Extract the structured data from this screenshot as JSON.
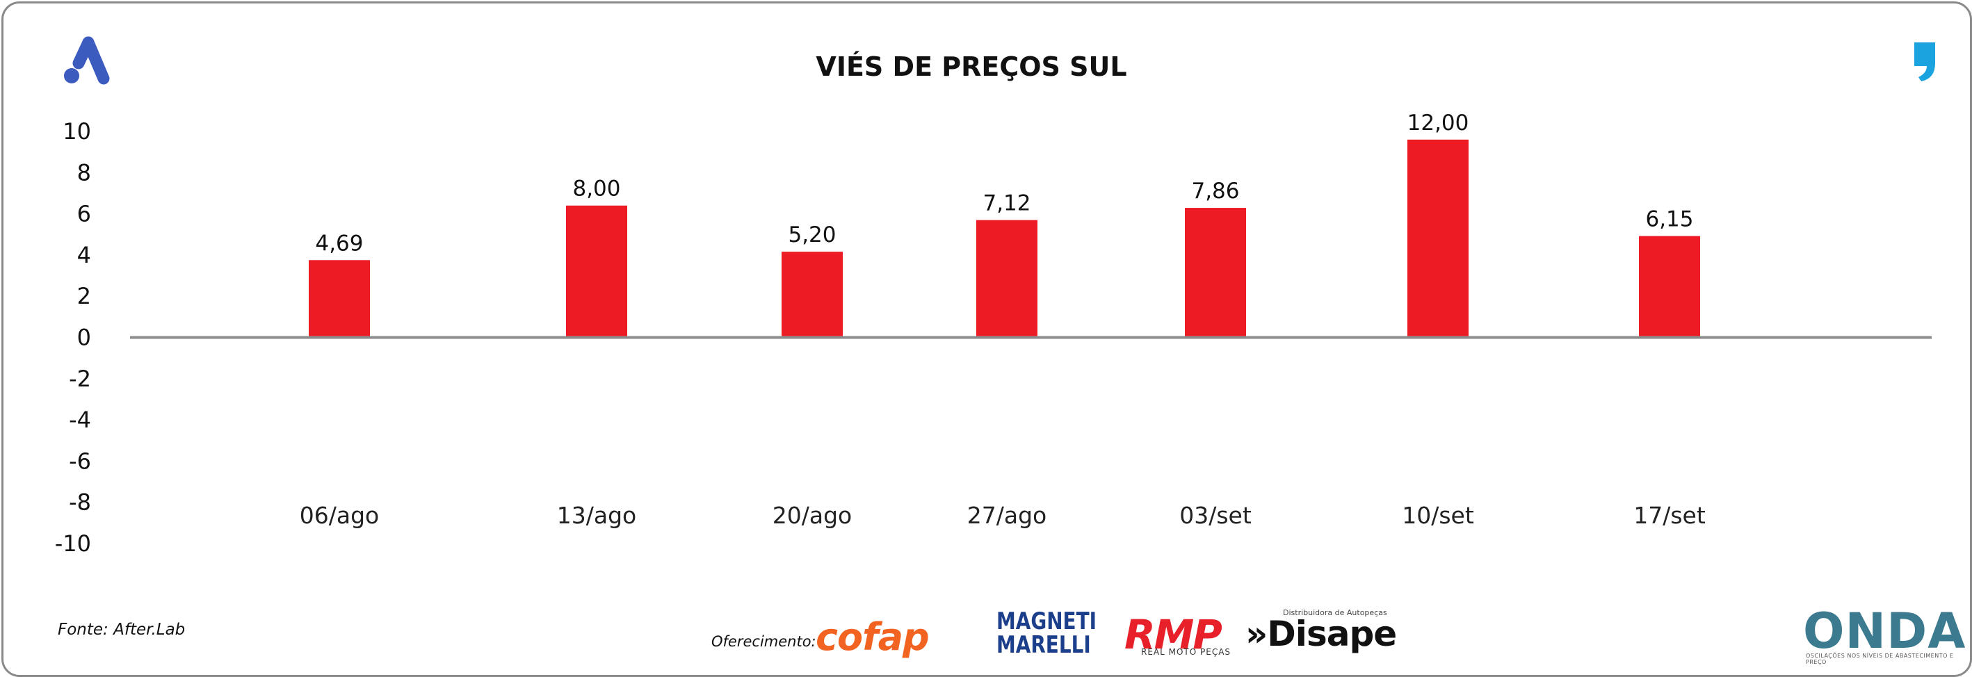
{
  "chart_data": {
    "type": "bar",
    "title": "VIÉS DE PREÇOS SUL",
    "categories": [
      "06/ago",
      "13/ago",
      "20/ago",
      "27/ago",
      "03/set",
      "10/set",
      "17/set"
    ],
    "values": [
      4.69,
      8.0,
      5.2,
      7.12,
      7.86,
      12.0,
      6.15
    ],
    "data_labels": [
      "4,69",
      "8,00",
      "5,20",
      "7,12",
      "7,86",
      "12,00",
      "6,15"
    ],
    "y_ticks": [
      "10",
      "8",
      "6",
      "4",
      "2",
      "0",
      "-2",
      "-4",
      "-6",
      "-8",
      "-10"
    ],
    "ylim": [
      -10,
      10
    ],
    "grid": false,
    "legend": "none",
    "bar_color": "#ed1c24"
  },
  "footer": {
    "source": "Fonte: After.Lab",
    "sponsor_label": "Oferecimento:",
    "logos": {
      "cofap": "cofap",
      "magneti": "MAGNETI MARELLI",
      "rmp": "RMP",
      "rmp_sub": "REAL MOTO PEÇAS",
      "disape": "»Disape",
      "disape_sub": "Distribuidora de Autopeças",
      "onda": "ONDA",
      "onda_sub": "OSCILAÇÕES NOS NÍVEIS DE ABASTECIMENTO E PREÇO"
    }
  },
  "colors": {
    "brand_blue": "#3b5bbf",
    "quote_blue": "#1ba3e0",
    "axis": "#8c8c8c"
  }
}
